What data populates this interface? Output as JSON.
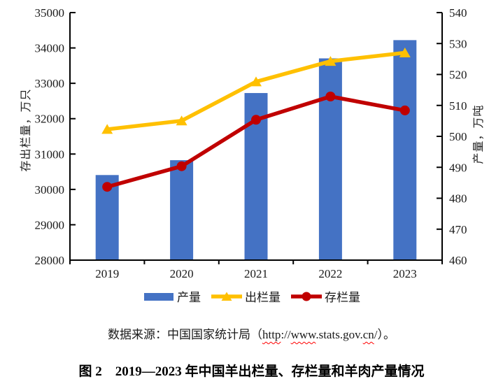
{
  "chart_data": {
    "type": "bar",
    "categories": [
      "2019",
      "2020",
      "2021",
      "2022",
      "2023"
    ],
    "series": [
      {
        "name": "产量",
        "type": "bar",
        "axis": "right",
        "color": "#4472C4",
        "marker": "none",
        "values": [
          487.5,
          492.3,
          514.0,
          525.2,
          531.1
        ]
      },
      {
        "name": "出栏量",
        "type": "line",
        "axis": "left",
        "color": "#FFC000",
        "marker": "triangle",
        "values": [
          31699,
          31941,
          33045,
          33624,
          33864
        ]
      },
      {
        "name": "存栏量",
        "type": "line",
        "axis": "left",
        "color": "#C00000",
        "marker": "circle",
        "values": [
          30072,
          30655,
          31969,
          32627,
          32233
        ]
      }
    ],
    "left_axis": {
      "label": "存出栏量，万只",
      "min": 28000,
      "max": 35000,
      "step": 1000
    },
    "right_axis": {
      "label": "产量，万吨",
      "min": 460,
      "max": 540,
      "step": 10
    },
    "grid": false,
    "legend_position": "bottom",
    "title": "图 2　2019—2023 年中国羊出栏量、存栏量和羊肉产量情况"
  },
  "source_line": {
    "full_text": "数据来源：中国国家统计局（http://www.stats.gov.cn/）。",
    "segments": [
      {
        "text": "数据来源：中国国家统计局（",
        "spellcheck_wavy": false
      },
      {
        "text": "http",
        "spellcheck_wavy": true
      },
      {
        "text": "://",
        "spellcheck_wavy": false
      },
      {
        "text": "www",
        "spellcheck_wavy": true
      },
      {
        "text": ".stats.gov.",
        "spellcheck_wavy": false
      },
      {
        "text": "cn",
        "spellcheck_wavy": true
      },
      {
        "text": "/",
        "spellcheck_wavy": false
      },
      {
        "text": "）。",
        "spellcheck_wavy": false
      }
    ]
  },
  "colors": {
    "bar_blue": "#4472C4",
    "line_yellow": "#FFC000",
    "line_red": "#C00000",
    "axis_black": "#000000",
    "spellcheck_red": "#FF0000"
  }
}
